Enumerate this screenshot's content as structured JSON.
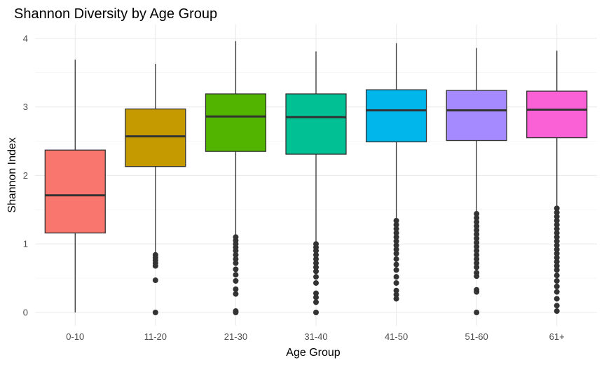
{
  "chart_data": {
    "type": "boxplot",
    "title": "Shannon Diversity by Age Group",
    "xlabel": "Age Group",
    "ylabel": "Shannon Index",
    "ylim": [
      -0.1,
      4.15
    ],
    "yticks": [
      0,
      1,
      2,
      3,
      4
    ],
    "grid": true,
    "legend": "none",
    "categories": [
      "0-10",
      "11-20",
      "21-30",
      "31-40",
      "41-50",
      "51-60",
      "61+"
    ],
    "boxes": [
      {
        "category": "0-10",
        "color": "#F8766D",
        "whisker_low": 0.0,
        "q1": 1.16,
        "median": 1.71,
        "q3": 2.37,
        "whisker_high": 3.69,
        "outliers": []
      },
      {
        "category": "11-20",
        "color": "#C49A00",
        "whisker_low": 0.87,
        "q1": 2.13,
        "median": 2.57,
        "q3": 2.97,
        "whisker_high": 3.63,
        "outliers": [
          0.0,
          0.47,
          0.68,
          0.72,
          0.76,
          0.8,
          0.84
        ]
      },
      {
        "category": "21-30",
        "color": "#53B400",
        "whisker_low": 1.12,
        "q1": 2.35,
        "median": 2.86,
        "q3": 3.19,
        "whisker_high": 3.96,
        "outliers": [
          0.0,
          0.02,
          0.27,
          0.34,
          0.46,
          0.55,
          0.63,
          0.72,
          0.78,
          0.84,
          0.9,
          0.95,
          1.0,
          1.05,
          1.1
        ]
      },
      {
        "category": "31-40",
        "color": "#00C094",
        "whisker_low": 1.02,
        "q1": 2.31,
        "median": 2.85,
        "q3": 3.19,
        "whisker_high": 3.81,
        "outliers": [
          0.0,
          0.15,
          0.22,
          0.28,
          0.43,
          0.52,
          0.6,
          0.66,
          0.72,
          0.78,
          0.84,
          0.9,
          0.95,
          1.0
        ]
      },
      {
        "category": "41-50",
        "color": "#00B6EB",
        "whisker_low": 1.35,
        "q1": 2.49,
        "median": 2.95,
        "q3": 3.25,
        "whisker_high": 3.93,
        "outliers": [
          0.2,
          0.26,
          0.32,
          0.43,
          0.52,
          0.62,
          0.7,
          0.78,
          0.86,
          0.92,
          0.98,
          1.04,
          1.1,
          1.16,
          1.22,
          1.28,
          1.34
        ]
      },
      {
        "category": "51-60",
        "color": "#A58AFF",
        "whisker_low": 1.45,
        "q1": 2.51,
        "median": 2.95,
        "q3": 3.24,
        "whisker_high": 3.86,
        "outliers": [
          0.0,
          0.3,
          0.33,
          0.53,
          0.58,
          0.66,
          0.72,
          0.78,
          0.84,
          0.9,
          0.96,
          1.02,
          1.08,
          1.14,
          1.2,
          1.26,
          1.32,
          1.38,
          1.44
        ]
      },
      {
        "category": "61+",
        "color": "#FB61D7",
        "whisker_low": 1.54,
        "q1": 2.55,
        "median": 2.96,
        "q3": 3.23,
        "whisker_high": 3.82,
        "outliers": [
          0.02,
          0.1,
          0.2,
          0.3,
          0.38,
          0.46,
          0.54,
          0.62,
          0.68,
          0.74,
          0.8,
          0.86,
          0.92,
          0.98,
          1.04,
          1.1,
          1.16,
          1.22,
          1.28,
          1.34,
          1.4,
          1.46,
          1.52
        ]
      }
    ]
  }
}
